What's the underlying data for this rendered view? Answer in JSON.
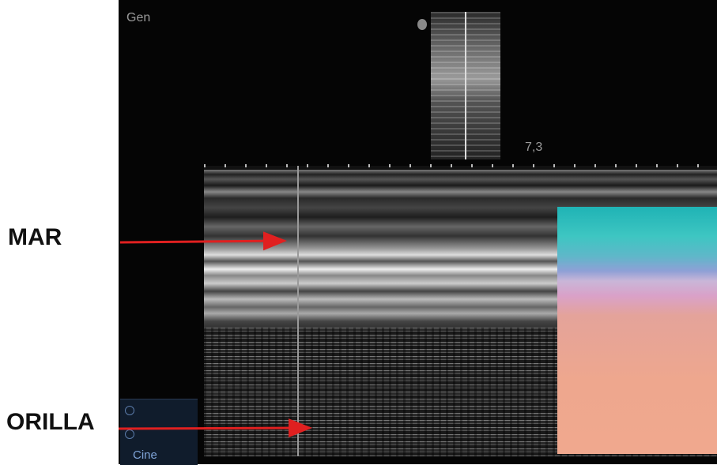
{
  "screen": {
    "mode": "Gen",
    "depth": "7,3",
    "menu": "Cine"
  },
  "annotations": [
    {
      "label": "MAR"
    },
    {
      "label": "ORILLA"
    }
  ]
}
